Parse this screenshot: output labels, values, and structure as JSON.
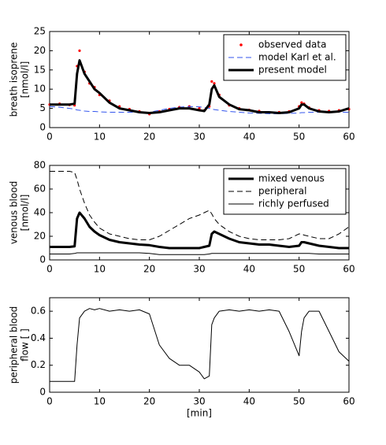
{
  "chart_data": [
    {
      "type": "line",
      "ylabel": [
        "breath isoprene",
        "[nmol/l]"
      ],
      "x": [
        0,
        2,
        4,
        5,
        5.5,
        6,
        7,
        8,
        9,
        10,
        12,
        14,
        16,
        18,
        20,
        22,
        24,
        26,
        28,
        30,
        31,
        32,
        32.5,
        33,
        34,
        36,
        38,
        40,
        42,
        44,
        46,
        48,
        50,
        50.5,
        51,
        52,
        54,
        56,
        58,
        60
      ],
      "xlim": [
        0,
        60
      ],
      "xticks": [
        0,
        10,
        20,
        30,
        40,
        50,
        60
      ],
      "ylim": [
        0,
        25
      ],
      "yticks": [
        0,
        5,
        10,
        15,
        20,
        25
      ],
      "legend": "upper right",
      "series": [
        {
          "name": "observed data",
          "color": "#ff0000",
          "style": "dots",
          "width": 1,
          "values": [
            6,
            6.2,
            5.9,
            5.8,
            16,
            20,
            14.5,
            11.5,
            10.5,
            8.5,
            7,
            5.5,
            4.8,
            4.2,
            3.5,
            4.2,
            4.8,
            5.3,
            5.5,
            5,
            4.5,
            5.5,
            12,
            11.5,
            8.5,
            5.8,
            5,
            4.6,
            4.3,
            3.9,
            4,
            4.2,
            5.5,
            6.5,
            6.2,
            5.2,
            4.5,
            4.3,
            4.5,
            4.8
          ]
        },
        {
          "name": "model Karl et al.",
          "color": "#3355ee",
          "style": "dashed",
          "width": 1,
          "values": [
            5.5,
            5.3,
            5,
            4.8,
            4.6,
            4.5,
            4.3,
            4.2,
            4.2,
            4.1,
            4,
            4,
            4,
            4,
            4,
            4.5,
            5,
            5.3,
            5.5,
            5.4,
            5.2,
            5,
            4.8,
            4.7,
            4.5,
            4.2,
            4,
            3.8,
            3.7,
            3.6,
            3.6,
            3.7,
            3.8,
            3.9,
            3.9,
            4,
            4,
            4,
            4,
            4
          ]
        },
        {
          "name": "present model",
          "color": "#000000",
          "style": "solid",
          "width": 3,
          "values": [
            6,
            6,
            6,
            6.2,
            14,
            17.5,
            14,
            12,
            10,
            9,
            6.5,
            5,
            4.5,
            4,
            3.8,
            4,
            4.5,
            5,
            5,
            4.5,
            4.3,
            6,
            10,
            11,
            8,
            6,
            4.8,
            4.5,
            4,
            4,
            3.8,
            4,
            5,
            6,
            6,
            5,
            4.2,
            4,
            4.2,
            5
          ]
        }
      ]
    },
    {
      "type": "line",
      "ylabel": [
        "venous blood",
        "[nmol/l]"
      ],
      "x": [
        0,
        2,
        4,
        5,
        5.5,
        6,
        7,
        8,
        9,
        10,
        12,
        14,
        16,
        18,
        20,
        22,
        24,
        26,
        28,
        30,
        31,
        32,
        32.5,
        33,
        34,
        36,
        38,
        40,
        42,
        44,
        46,
        48,
        50,
        50.5,
        51,
        52,
        54,
        56,
        58,
        60
      ],
      "xlim": [
        0,
        60
      ],
      "xticks": [
        0,
        10,
        20,
        30,
        40,
        50,
        60
      ],
      "ylim": [
        0,
        80
      ],
      "yticks": [
        0,
        20,
        40,
        60,
        80
      ],
      "legend": "upper right",
      "series": [
        {
          "name": "mixed venous",
          "color": "#000000",
          "style": "solid",
          "width": 3,
          "values": [
            11,
            11,
            11,
            11.5,
            35,
            40,
            35,
            28,
            24,
            21,
            17,
            15,
            14,
            13,
            12.5,
            11,
            10,
            10,
            10,
            10,
            11,
            12,
            22,
            24,
            22,
            18,
            15,
            14,
            13,
            13,
            12,
            11,
            12,
            15,
            15,
            14,
            12,
            11,
            10,
            10
          ]
        },
        {
          "name": "peripheral",
          "color": "#000000",
          "style": "dashed",
          "width": 1,
          "values": [
            75,
            75,
            75,
            74,
            68,
            60,
            48,
            38,
            32,
            27,
            22,
            20,
            18,
            17,
            17,
            20,
            25,
            30,
            35,
            38,
            40,
            42,
            39,
            35,
            30,
            24,
            20,
            18,
            17,
            17,
            17,
            18,
            22,
            22,
            21,
            20,
            18,
            18,
            22,
            28
          ]
        },
        {
          "name": "richly perfused",
          "color": "#000000",
          "style": "solid",
          "width": 1,
          "values": [
            5,
            5,
            5,
            5.5,
            6,
            6,
            6,
            6,
            6,
            6,
            6,
            6,
            6,
            6,
            5.5,
            4.5,
            4.5,
            4.5,
            4.5,
            4.5,
            4.5,
            5,
            5.5,
            5.5,
            5.5,
            5.5,
            5.5,
            5.5,
            5.5,
            5.5,
            5.5,
            5.5,
            5.5,
            5.5,
            5.5,
            5.5,
            5,
            5,
            5,
            5
          ]
        }
      ]
    },
    {
      "type": "line",
      "ylabel": [
        "peripheral blood",
        "flow [ ]"
      ],
      "xlabel": "[min]",
      "x": [
        0,
        2,
        4,
        5,
        5.5,
        6,
        7,
        8,
        9,
        10,
        12,
        14,
        16,
        18,
        20,
        22,
        24,
        26,
        28,
        30,
        31,
        32,
        32.5,
        33,
        34,
        36,
        38,
        40,
        42,
        44,
        46,
        48,
        50,
        50.5,
        51,
        52,
        54,
        56,
        58,
        60
      ],
      "xlim": [
        0,
        60
      ],
      "xticks": [
        0,
        10,
        20,
        30,
        40,
        50,
        60
      ],
      "ylim": [
        0,
        0.7
      ],
      "yticks": [
        0,
        0.2,
        0.4,
        0.6
      ],
      "series": [
        {
          "color": "#000000",
          "style": "solid",
          "width": 1,
          "values": [
            0.08,
            0.08,
            0.08,
            0.08,
            0.35,
            0.55,
            0.6,
            0.62,
            0.61,
            0.62,
            0.6,
            0.61,
            0.6,
            0.61,
            0.58,
            0.35,
            0.25,
            0.2,
            0.2,
            0.15,
            0.1,
            0.12,
            0.5,
            0.55,
            0.6,
            0.61,
            0.6,
            0.61,
            0.6,
            0.61,
            0.6,
            0.45,
            0.27,
            0.45,
            0.55,
            0.6,
            0.6,
            0.45,
            0.3,
            0.23
          ]
        }
      ]
    }
  ]
}
